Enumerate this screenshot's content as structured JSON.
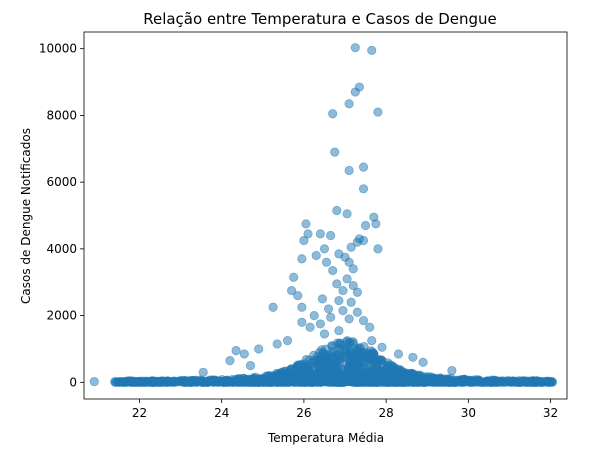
{
  "chart_data": {
    "type": "scatter",
    "title": "Relação entre Temperatura e Casos de Dengue",
    "xlabel": "Temperatura Média",
    "ylabel": "Casos de Dengue Notificados",
    "xlim": [
      20.65,
      32.4
    ],
    "ylim": [
      -500,
      10500
    ],
    "xticks": [
      22,
      24,
      26,
      28,
      30,
      32
    ],
    "yticks": [
      0,
      2000,
      4000,
      6000,
      8000,
      10000
    ],
    "grid": false,
    "legend": "none",
    "marker_color": "#1f77b4",
    "marker_alpha": 0.5,
    "outliers": [
      {
        "x": 20.9,
        "y": 20
      },
      {
        "x": 27.25,
        "y": 10030
      },
      {
        "x": 27.65,
        "y": 9950
      },
      {
        "x": 27.35,
        "y": 8850
      },
      {
        "x": 27.25,
        "y": 8700
      },
      {
        "x": 27.1,
        "y": 8350
      },
      {
        "x": 27.8,
        "y": 8100
      },
      {
        "x": 26.7,
        "y": 8050
      },
      {
        "x": 26.75,
        "y": 6900
      },
      {
        "x": 27.45,
        "y": 6450
      },
      {
        "x": 27.1,
        "y": 6350
      },
      {
        "x": 27.45,
        "y": 5800
      },
      {
        "x": 26.8,
        "y": 5150
      },
      {
        "x": 27.05,
        "y": 5050
      },
      {
        "x": 27.7,
        "y": 4950
      },
      {
        "x": 27.5,
        "y": 4700
      },
      {
        "x": 27.75,
        "y": 4750
      },
      {
        "x": 26.05,
        "y": 4750
      },
      {
        "x": 26.1,
        "y": 4450
      },
      {
        "x": 26.4,
        "y": 4450
      },
      {
        "x": 26.65,
        "y": 4400
      },
      {
        "x": 26.0,
        "y": 4250
      },
      {
        "x": 27.35,
        "y": 4300
      },
      {
        "x": 27.3,
        "y": 4200
      },
      {
        "x": 27.45,
        "y": 4250
      },
      {
        "x": 27.15,
        "y": 4050
      },
      {
        "x": 27.8,
        "y": 4000
      },
      {
        "x": 26.5,
        "y": 4000
      },
      {
        "x": 26.3,
        "y": 3800
      },
      {
        "x": 25.95,
        "y": 3700
      },
      {
        "x": 26.85,
        "y": 3850
      },
      {
        "x": 27.0,
        "y": 3750
      },
      {
        "x": 27.1,
        "y": 3600
      },
      {
        "x": 26.55,
        "y": 3600
      },
      {
        "x": 26.7,
        "y": 3350
      },
      {
        "x": 27.2,
        "y": 3400
      },
      {
        "x": 25.75,
        "y": 3150
      },
      {
        "x": 27.05,
        "y": 3100
      },
      {
        "x": 26.8,
        "y": 2950
      },
      {
        "x": 27.2,
        "y": 2900
      },
      {
        "x": 26.95,
        "y": 2750
      },
      {
        "x": 25.7,
        "y": 2750
      },
      {
        "x": 27.3,
        "y": 2700
      },
      {
        "x": 25.85,
        "y": 2600
      },
      {
        "x": 26.45,
        "y": 2500
      },
      {
        "x": 26.85,
        "y": 2450
      },
      {
        "x": 27.15,
        "y": 2400
      },
      {
        "x": 25.95,
        "y": 2250
      },
      {
        "x": 25.25,
        "y": 2250
      },
      {
        "x": 26.6,
        "y": 2200
      },
      {
        "x": 26.95,
        "y": 2150
      },
      {
        "x": 27.3,
        "y": 2100
      },
      {
        "x": 26.25,
        "y": 2000
      },
      {
        "x": 26.65,
        "y": 1950
      },
      {
        "x": 27.1,
        "y": 1900
      },
      {
        "x": 27.45,
        "y": 1850
      },
      {
        "x": 25.95,
        "y": 1800
      },
      {
        "x": 26.4,
        "y": 1750
      },
      {
        "x": 26.15,
        "y": 1650
      },
      {
        "x": 27.6,
        "y": 1650
      },
      {
        "x": 26.85,
        "y": 1550
      },
      {
        "x": 26.5,
        "y": 1450
      },
      {
        "x": 25.6,
        "y": 1250
      },
      {
        "x": 27.65,
        "y": 1250
      },
      {
        "x": 25.35,
        "y": 1150
      },
      {
        "x": 27.9,
        "y": 1050
      },
      {
        "x": 24.9,
        "y": 1000
      },
      {
        "x": 24.35,
        "y": 950
      },
      {
        "x": 28.3,
        "y": 850
      },
      {
        "x": 24.55,
        "y": 850
      },
      {
        "x": 28.65,
        "y": 750
      },
      {
        "x": 24.2,
        "y": 650
      },
      {
        "x": 28.9,
        "y": 600
      },
      {
        "x": 24.7,
        "y": 500
      },
      {
        "x": 29.6,
        "y": 350
      },
      {
        "x": 23.55,
        "y": 300
      }
    ],
    "dense_cluster": {
      "x_range": [
        21.4,
        32.05
      ],
      "peak_x": 27.0,
      "y_range": [
        0,
        1200
      ],
      "note": "thousands of overlapping points near zero forming a peaked band around x≈27"
    }
  }
}
